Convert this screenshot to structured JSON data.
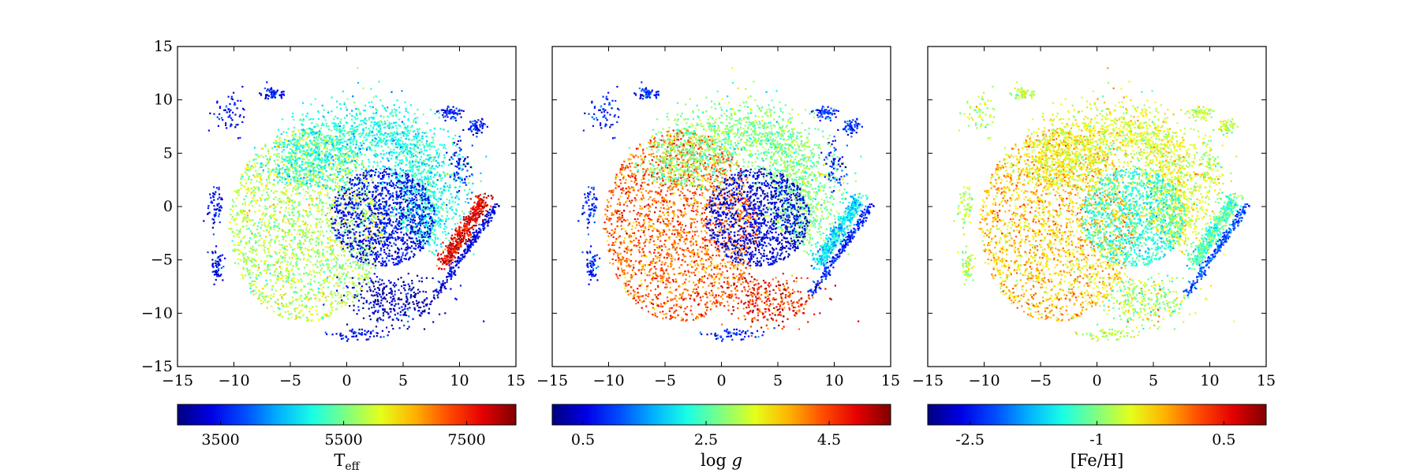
{
  "chart_data": [
    {
      "type": "scatter",
      "panel": "left",
      "xlim": [
        -15,
        15
      ],
      "ylim": [
        -15,
        15
      ],
      "x_ticks": [
        -15,
        -10,
        -5,
        0,
        5,
        10,
        15
      ],
      "y_ticks": [
        -15,
        -10,
        -5,
        0,
        5,
        10,
        15
      ],
      "x_tick_labels": [
        "−15",
        "−10",
        "−5",
        "0",
        "5",
        "10",
        "15"
      ],
      "y_tick_labels": [
        "−15",
        "−10",
        "−5",
        "0",
        "5",
        "10",
        "15"
      ],
      "show_y_tick_labels": true,
      "colorbar": {
        "label_main": "T",
        "label_sub": "eff",
        "range": [
          2800,
          8300
        ],
        "ticks": [
          3500,
          5500,
          7500
        ],
        "tick_labels": [
          "3500",
          "5500",
          "7500"
        ],
        "colormap": "jet"
      },
      "regions": {
        "lower_disk": 0.55,
        "upper_arc": 0.4,
        "center_bulge": 0.12,
        "bottom_blob": 0.05,
        "right_arm": 0.9,
        "right_thin_arm": 0.1,
        "outer_clumps": 0.12
      }
    },
    {
      "type": "scatter",
      "panel": "middle",
      "xlim": [
        -15,
        15
      ],
      "ylim": [
        -15,
        15
      ],
      "x_ticks": [
        -15,
        -10,
        -5,
        0,
        5,
        10,
        15
      ],
      "y_ticks": [
        -15,
        -10,
        -5,
        0,
        5,
        10,
        15
      ],
      "x_tick_labels": [
        "−15",
        "−10",
        "−5",
        "0",
        "5",
        "10",
        "15"
      ],
      "y_tick_labels": [],
      "show_y_tick_labels": false,
      "colorbar": {
        "label_main": "log ",
        "label_sub": "g",
        "range": [
          0.0,
          5.5
        ],
        "ticks": [
          0.5,
          2.5,
          4.5
        ],
        "tick_labels": [
          "0.5",
          "2.5",
          "4.5"
        ],
        "colormap": "jet"
      },
      "regions": {
        "lower_disk": 0.78,
        "upper_arc": 0.5,
        "center_bulge": 0.1,
        "bottom_blob": 0.85,
        "right_arm": 0.35,
        "right_thin_arm": 0.15,
        "outer_clumps": 0.15
      }
    },
    {
      "type": "scatter",
      "panel": "right",
      "xlim": [
        -15,
        15
      ],
      "ylim": [
        -15,
        15
      ],
      "x_ticks": [
        -15,
        -10,
        -5,
        0,
        5,
        10,
        15
      ],
      "y_ticks": [
        -15,
        -10,
        -5,
        0,
        5,
        10,
        15
      ],
      "x_tick_labels": [
        "−15",
        "−10",
        "−5",
        "0",
        "5",
        "10",
        "15"
      ],
      "y_tick_labels": [],
      "show_y_tick_labels": false,
      "colorbar": {
        "label_main": "[Fe/H]",
        "label_sub": "",
        "range": [
          -3.0,
          1.0
        ],
        "ticks": [
          -2.5,
          -1,
          0.5
        ],
        "tick_labels": [
          "-2.5",
          "-1",
          "0.5"
        ],
        "colormap": "jet"
      },
      "regions": {
        "lower_disk": 0.68,
        "upper_arc": 0.6,
        "center_bulge": 0.42,
        "bottom_blob": 0.55,
        "right_arm": 0.45,
        "right_thin_arm": 0.2,
        "outer_clumps": 0.55
      }
    }
  ]
}
